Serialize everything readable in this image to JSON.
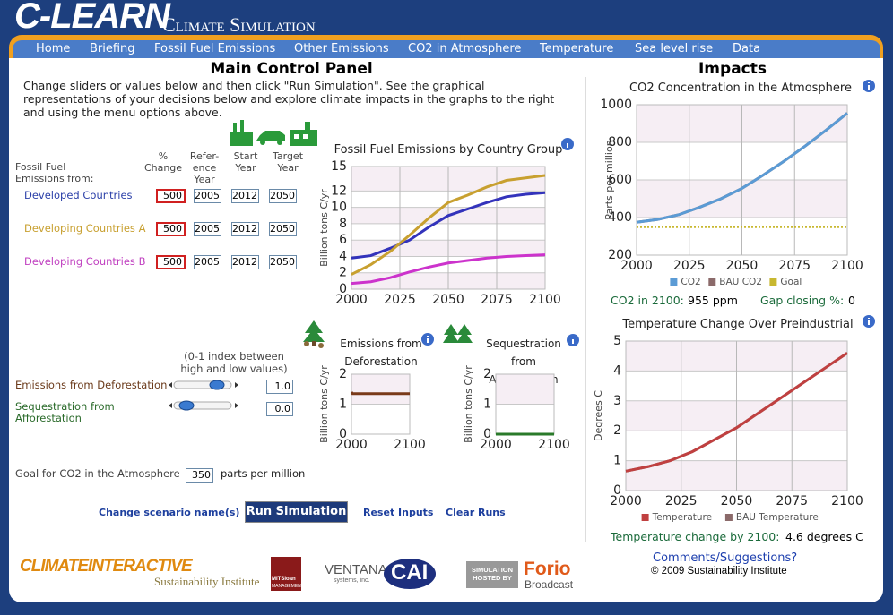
{
  "header": {
    "title": "C-LEARN",
    "subtitle": "Climate Simulation"
  },
  "menu": [
    "Home",
    "Briefing",
    "Fossil Fuel Emissions",
    "Other Emissions",
    "CO2 in Atmosphere",
    "Temperature",
    "Sea level rise",
    "Data"
  ],
  "control_panel": {
    "title": "Main Control Panel",
    "instructions": "Change sliders or values below and then click \"Run Simulation\". See the graphical representations of your decisions below and explore climate impacts in the graphs to the right and using the menu options above.",
    "source_label": "Fossil Fuel Emissions from:",
    "column_headers": [
      "% Change",
      "Refer-ence Year",
      "Start Year",
      "Target Year"
    ],
    "rows": [
      [
        "500",
        "2005",
        "2012",
        "2050"
      ],
      [
        "500",
        "2005",
        "2012",
        "2050"
      ],
      [
        "500",
        "2005",
        "2012",
        "2050"
      ]
    ],
    "index_note": "(0-1 index between high and low values)",
    "deforestation": {
      "label": "Emissions from Deforestation",
      "value": "1.0"
    },
    "afforestation": {
      "label": "Sequestration from Afforestation",
      "value": "0.0"
    },
    "goal": {
      "label": "Goal for CO2 in the Atmosphere",
      "value": "350",
      "unit": "parts per million"
    },
    "buttons": [
      "Change scenario name(s)",
      "Run Simulation",
      "Reset Inputs",
      "Clear Runs"
    ]
  },
  "impacts": {
    "title": "Impacts",
    "co2_result": {
      "label": "CO2 in 2100:",
      "value": "955 ppm"
    },
    "gap_result": {
      "label": "Gap closing %:",
      "value": "0"
    },
    "temp_result": {
      "label": "Temperature change by 2100:",
      "value": "4.6 degrees C"
    }
  },
  "footer": {
    "comments": "Comments/Suggestions?",
    "copyright": "© 2009 Sustainability Institute",
    "logos": [
      "CLIMATEINTERACTIVE",
      "Sustainability Institute",
      "MITSloan",
      "MANAGEMENT",
      "VENTANA",
      "systems, inc.",
      "CAI",
      "SIMULATION HOSTED BY",
      "Forio",
      "Broadcast"
    ]
  },
  "chart_data": [
    {
      "type": "line",
      "title": "Fossil Fuel Emissions by Country Group",
      "y_label": "Billion tons C/yr",
      "x": [
        2000,
        2010,
        2020,
        2030,
        2040,
        2050,
        2060,
        2070,
        2080,
        2090,
        2100
      ],
      "xlim": [
        2000,
        2100
      ],
      "xticks": [
        2000,
        2025,
        2050,
        2075,
        2100
      ],
      "ylim": [
        0,
        15
      ],
      "yticks": [
        0,
        2,
        4,
        6,
        8,
        10,
        12,
        15
      ],
      "grid": true,
      "series": [
        {
          "name": "Developed Countries",
          "color": "#3333bb",
          "values": [
            3.8,
            4.1,
            5.0,
            6.0,
            7.6,
            9.0,
            9.8,
            10.6,
            11.3,
            11.6,
            11.8
          ]
        },
        {
          "name": "Developing Countries A",
          "color": "#c8a030",
          "values": [
            1.8,
            3.0,
            4.6,
            6.6,
            8.7,
            10.6,
            11.5,
            12.5,
            13.3,
            13.6,
            13.9
          ]
        },
        {
          "name": "Developing Countries B",
          "color": "#cc33cc",
          "values": [
            0.7,
            0.9,
            1.4,
            2.1,
            2.7,
            3.2,
            3.5,
            3.8,
            4.0,
            4.1,
            4.2
          ]
        }
      ]
    },
    {
      "type": "line",
      "title": "Emissions from Deforestation",
      "y_label": "Billion tons C/yr",
      "x": [
        2000,
        2002,
        2010,
        2020,
        2030,
        2040,
        2050,
        2060,
        2070,
        2080,
        2090,
        2100
      ],
      "xlim": [
        2000,
        2100
      ],
      "xticks": [
        2000,
        2100
      ],
      "ylim": [
        0,
        2
      ],
      "yticks": [
        0,
        1,
        2
      ],
      "grid": true,
      "series": [
        {
          "color": "#7a3a1a",
          "values": [
            1.4,
            1.35,
            1.35,
            1.35,
            1.35,
            1.35,
            1.35,
            1.35,
            1.35,
            1.35,
            1.35,
            1.35
          ]
        }
      ]
    },
    {
      "type": "line",
      "title": "Sequestration from Afforestation",
      "y_label": "Billion tons C/yr",
      "x": [
        2000,
        2050,
        2100
      ],
      "xlim": [
        2000,
        2100
      ],
      "xticks": [
        2000,
        2100
      ],
      "ylim": [
        0,
        2
      ],
      "yticks": [
        0,
        1,
        2
      ],
      "grid": true,
      "series": [
        {
          "color": "#2a7a2a",
          "values": [
            0,
            0,
            0
          ]
        }
      ]
    },
    {
      "type": "line",
      "title": "CO2 Concentration in the Atmosphere",
      "y_label": "Parts per million",
      "x": [
        2000,
        2010,
        2020,
        2030,
        2040,
        2050,
        2060,
        2070,
        2080,
        2090,
        2100
      ],
      "xlim": [
        2000,
        2100
      ],
      "xticks": [
        2000,
        2025,
        2050,
        2075,
        2100
      ],
      "ylim": [
        200,
        1000
      ],
      "yticks": [
        200,
        400,
        600,
        800,
        1000
      ],
      "grid": true,
      "legend": "bottom",
      "series": [
        {
          "name": "BAU CO2",
          "color": "#8b6a6a",
          "values": [
            375,
            390,
            415,
            455,
            500,
            555,
            625,
            700,
            780,
            865,
            955
          ]
        },
        {
          "name": "CO2",
          "color": "#5b9bd5",
          "values": [
            375,
            390,
            415,
            455,
            500,
            555,
            625,
            700,
            780,
            865,
            955
          ]
        },
        {
          "name": "Goal",
          "color": "#c8b830",
          "style": "dotted",
          "values": [
            350,
            350,
            350,
            350,
            350,
            350,
            350,
            350,
            350,
            350,
            350
          ]
        }
      ]
    },
    {
      "type": "line",
      "title": "Temperature Change Over Preindustrial",
      "y_label": "Degrees C",
      "x": [
        2000,
        2010,
        2020,
        2030,
        2040,
        2050,
        2060,
        2070,
        2080,
        2090,
        2100
      ],
      "xlim": [
        2000,
        2100
      ],
      "xticks": [
        2000,
        2025,
        2050,
        2075,
        2100
      ],
      "ylim": [
        0,
        5
      ],
      "yticks": [
        0,
        1,
        2,
        3,
        4,
        5
      ],
      "grid": true,
      "legend": "bottom",
      "series": [
        {
          "name": "BAU Temperature",
          "color": "#8b6a6a",
          "values": [
            0.65,
            0.8,
            1.0,
            1.3,
            1.7,
            2.1,
            2.6,
            3.1,
            3.6,
            4.1,
            4.6
          ]
        },
        {
          "name": "Temperature",
          "color": "#c04040",
          "values": [
            0.65,
            0.8,
            1.0,
            1.3,
            1.7,
            2.1,
            2.6,
            3.1,
            3.6,
            4.1,
            4.6
          ]
        }
      ]
    }
  ]
}
